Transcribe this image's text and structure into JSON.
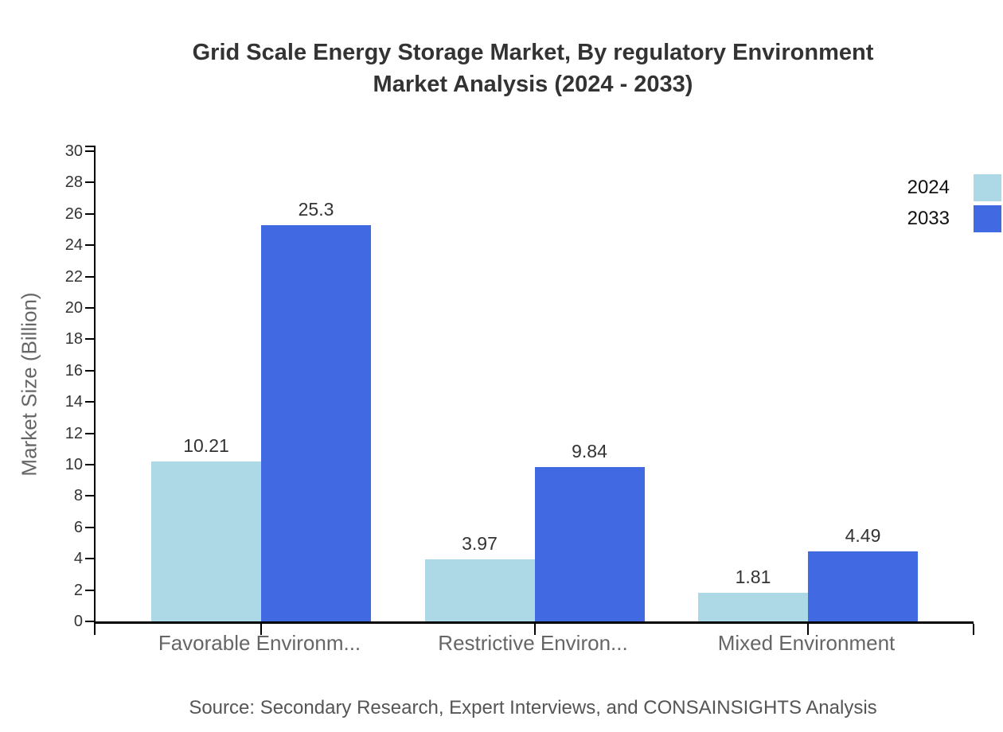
{
  "title": {
    "line1": "Grid Scale Energy Storage Market, By regulatory Environment",
    "line2": "Market Analysis (2024 - 2033)"
  },
  "source": "Source: Secondary Research, Expert Interviews, and CONSAINSIGHTS Analysis",
  "colors": {
    "series_2024": "#ADD8E6",
    "series_2033": "#4169E1",
    "axis": "#000000",
    "title_text": "#333333",
    "muted_text": "#666666"
  },
  "chart_data": {
    "type": "bar",
    "title": "Grid Scale Energy Storage Market, By regulatory Environment Market Analysis (2024 - 2033)",
    "categories": [
      "Favorable Environm...",
      "Restrictive Environ...",
      "Mixed Environment"
    ],
    "series": [
      {
        "name": "2024",
        "color": "#ADD8E6",
        "values": [
          10.21,
          3.97,
          1.81
        ],
        "labels": [
          "10.21",
          "3.97",
          "1.81"
        ]
      },
      {
        "name": "2033",
        "color": "#4169E1",
        "values": [
          25.3,
          9.84,
          4.49
        ],
        "labels": [
          "25.3",
          "9.84",
          "4.49"
        ]
      }
    ],
    "xlabel": "",
    "ylabel": "Market Size (Billion)",
    "ylim": [
      0,
      30
    ],
    "ytick_step": 2,
    "grid": false,
    "legend_position": "top-right",
    "value_labels": true
  }
}
